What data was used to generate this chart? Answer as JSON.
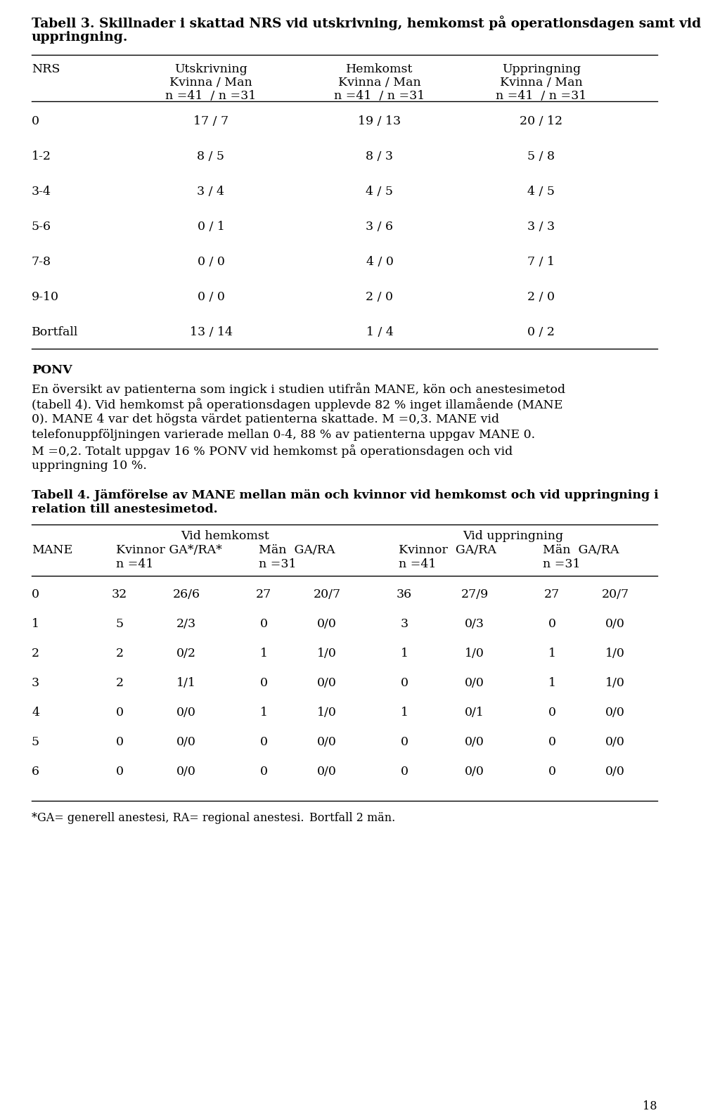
{
  "title_line1": "Tabell 3. Skillnader i skattad NRS vid utskrivning, hemkomst på operationsdagen samt vid",
  "title_line2": "uppringning.",
  "table1_rows": [
    [
      "0",
      "17 / 7",
      "19 / 13",
      "20 / 12"
    ],
    [
      "1-2",
      "8 / 5",
      "8 / 3",
      "5 / 8"
    ],
    [
      "3-4",
      "3 / 4",
      "4 / 5",
      "4 / 5"
    ],
    [
      "5-6",
      "0 / 1",
      "3 / 6",
      "3 / 3"
    ],
    [
      "7-8",
      "0 / 0",
      "4 / 0",
      "7 / 1"
    ],
    [
      "9-10",
      "0 / 0",
      "2 / 0",
      "2 / 0"
    ],
    [
      "Bortfall",
      "13 / 14",
      "1 / 4",
      "0 / 2"
    ]
  ],
  "ponv_heading": "PONV",
  "ponv_lines": [
    "En översikt av patienterna som ingick i studien utifrån MANE, kön och anestesimetod",
    "(tabell 4). Vid hemkomst på operationsdagen upplevde 82 % inget illamående (MANE",
    "0). MANE 4 var det högsta värdet patienterna skattade. M =0,3. MANE vid",
    "telefonuppföljningen varierade mellan 0-4, 88 % av patienterna uppgav MANE 0.",
    "M =0,2. Totalt uppgav 16 % PONV vid hemkomst på operationsdagen och vid",
    "uppringning 10 %."
  ],
  "table2_title_line1": "Tabell 4. Jämförelse av MANE mellan män och kvinnor vid hemkomst och vid uppringning i",
  "table2_title_line2": "relation till anestesimetod.",
  "table2_rows": [
    [
      "0",
      "32",
      "26/6",
      "27",
      "20/7",
      "36",
      "27/9",
      "27",
      "20/7"
    ],
    [
      "1",
      "5",
      "2/3",
      "0",
      "0/0",
      "3",
      "0/3",
      "0",
      "0/0"
    ],
    [
      "2",
      "2",
      "0/2",
      "1",
      "1/0",
      "1",
      "1/0",
      "1",
      "1/0"
    ],
    [
      "3",
      "2",
      "1/1",
      "0",
      "0/0",
      "0",
      "0/0",
      "1",
      "1/0"
    ],
    [
      "4",
      "0",
      "0/0",
      "1",
      "1/0",
      "1",
      "0/1",
      "0",
      "0/0"
    ],
    [
      "5",
      "0",
      "0/0",
      "0",
      "0/0",
      "0",
      "0/0",
      "0",
      "0/0"
    ],
    [
      "6",
      "0",
      "0/0",
      "0",
      "0/0",
      "0",
      "0/0",
      "0",
      "0/0"
    ]
  ],
  "footnote_left": "*GA= generell anestesi, RA= regional anestesi.",
  "footnote_right": "Bortfall 2 män.",
  "page_number": "18",
  "bg_color": "#ffffff",
  "text_color": "#000000"
}
